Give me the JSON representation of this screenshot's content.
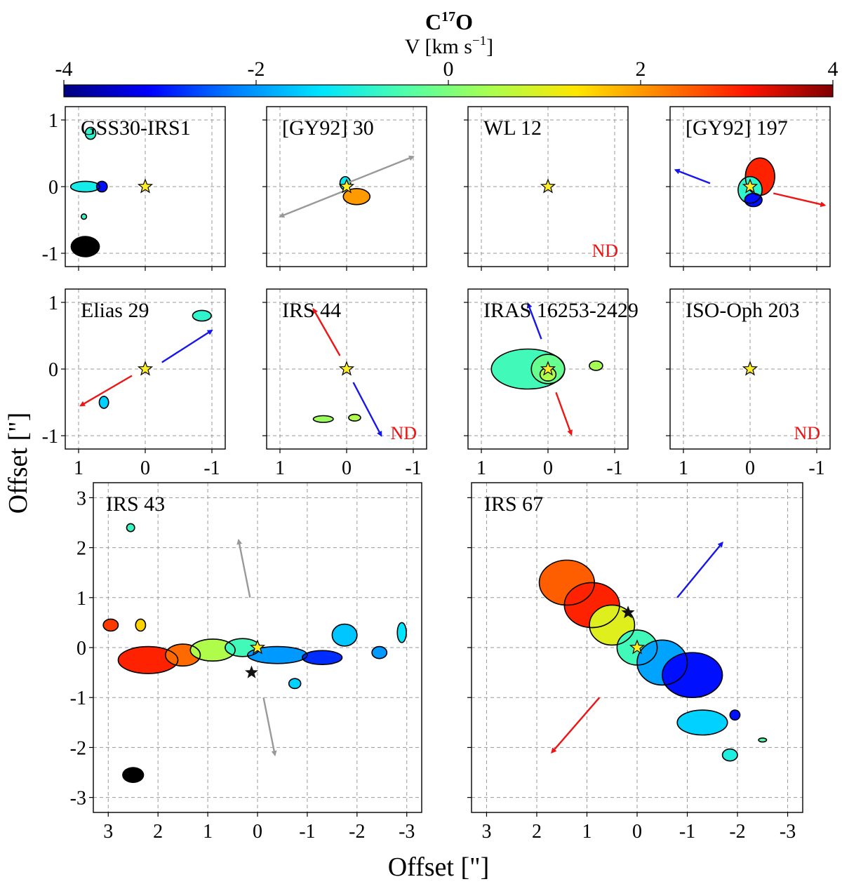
{
  "colorbar": {
    "title_base": "C",
    "title_sup": "17",
    "title_end": "O",
    "label_main": "V [km s",
    "label_sup": "−1",
    "label_end": "]",
    "range": [
      -4,
      4
    ],
    "ticks": [
      "-4",
      "-2",
      "0",
      "2",
      "4"
    ],
    "stops": [
      "#00007f",
      "#0000ff",
      "#0080ff",
      "#00e4ff",
      "#4fffaa",
      "#aaff4f",
      "#ffe600",
      "#ff8000",
      "#ff1400",
      "#7f0000"
    ]
  },
  "labels": {
    "ylabel": "Offset [\"]",
    "xlabel": "Offset [\"]"
  },
  "colors": {
    "star": "#ffee22",
    "source_star": "#111111",
    "nd": "#ee1111",
    "arrow_blue": "#1515ee",
    "arrow_red": "#ee1515",
    "arrow_grey": "#999999",
    "grid": "#9a9a9a"
  },
  "chart_data": [
    {
      "type": "heatmap",
      "title": "GSS30-IRS1",
      "xlim": [
        1.2,
        -1.2
      ],
      "ylim": [
        -1.2,
        1.2
      ],
      "xticks": [],
      "yticks": [
        "1",
        "0",
        "-1"
      ],
      "nd": "",
      "beam": {
        "x": 0.9,
        "y": -0.9,
        "rx": 0.22,
        "ry": 0.16
      },
      "arrows": [],
      "emission": [
        {
          "x": 0.82,
          "y": 0.8,
          "rx": 0.08,
          "ry": 0.09,
          "v": -0.8
        },
        {
          "x": 0.9,
          "y": 0.0,
          "rx": 0.22,
          "ry": 0.08,
          "v": -1.1
        },
        {
          "x": 0.65,
          "y": 0.0,
          "rx": 0.08,
          "ry": 0.08,
          "v": -3.0
        },
        {
          "x": 0.92,
          "y": -0.45,
          "rx": 0.04,
          "ry": 0.04,
          "v": -0.7
        }
      ]
    },
    {
      "type": "heatmap",
      "title": "[GY92] 30",
      "xlim": [
        1.2,
        -1.2
      ],
      "ylim": [
        -1.2,
        1.2
      ],
      "xticks": [],
      "yticks": [],
      "nd": "",
      "beam": null,
      "arrows": [
        {
          "x1": 0.05,
          "y1": 0.03,
          "x2": -1.0,
          "y2": 0.45,
          "color": "grey"
        },
        {
          "x1": -0.05,
          "y1": -0.03,
          "x2": 1.0,
          "y2": -0.45,
          "color": "grey"
        }
      ],
      "emission": [
        {
          "x": -0.15,
          "y": -0.15,
          "rx": 0.2,
          "ry": 0.12,
          "v": 2.0
        },
        {
          "x": 0.02,
          "y": 0.05,
          "rx": 0.08,
          "ry": 0.1,
          "v": -1.2
        }
      ]
    },
    {
      "type": "heatmap",
      "title": "WL 12",
      "xlim": [
        1.2,
        -1.2
      ],
      "ylim": [
        -1.2,
        1.2
      ],
      "xticks": [],
      "yticks": [],
      "nd": "ND",
      "beam": null,
      "arrows": [],
      "emission": []
    },
    {
      "type": "heatmap",
      "title": "[GY92] 197",
      "xlim": [
        1.2,
        -1.2
      ],
      "ylim": [
        -1.2,
        1.2
      ],
      "xticks": [],
      "yticks": [],
      "nd": "",
      "beam": null,
      "arrows": [
        {
          "x1": 0.6,
          "y1": 0.05,
          "x2": 1.12,
          "y2": 0.25,
          "color": "blue"
        },
        {
          "x1": -0.35,
          "y1": -0.1,
          "x2": -1.12,
          "y2": -0.28,
          "color": "red"
        }
      ],
      "emission": [
        {
          "x": -0.15,
          "y": 0.15,
          "rx": 0.22,
          "ry": 0.28,
          "v": 3.0
        },
        {
          "x": 0.0,
          "y": -0.05,
          "rx": 0.18,
          "ry": 0.2,
          "v": -0.8
        },
        {
          "x": -0.05,
          "y": -0.2,
          "rx": 0.13,
          "ry": 0.1,
          "v": -3.0
        }
      ]
    },
    {
      "type": "heatmap",
      "title": "Elias 29",
      "xlim": [
        1.2,
        -1.2
      ],
      "ylim": [
        -1.2,
        1.2
      ],
      "xticks": [
        "1",
        "0",
        "-1"
      ],
      "yticks": [
        "1",
        "0",
        "-1"
      ],
      "nd": "",
      "beam": null,
      "arrows": [
        {
          "x1": -0.25,
          "y1": 0.1,
          "x2": -1.0,
          "y2": 0.58,
          "color": "blue"
        },
        {
          "x1": 0.2,
          "y1": -0.1,
          "x2": 0.97,
          "y2": -0.55,
          "color": "red"
        }
      ],
      "emission": [
        {
          "x": -0.85,
          "y": 0.8,
          "rx": 0.14,
          "ry": 0.08,
          "v": -0.8
        },
        {
          "x": 0.62,
          "y": -0.5,
          "rx": 0.07,
          "ry": 0.09,
          "v": -1.5
        }
      ]
    },
    {
      "type": "heatmap",
      "title": "IRS 44",
      "xlim": [
        1.2,
        -1.2
      ],
      "ylim": [
        -1.2,
        1.2
      ],
      "xticks": [
        "1",
        "0",
        "-1"
      ],
      "yticks": [],
      "nd": "ND",
      "beam": null,
      "arrows": [
        {
          "x1": 0.1,
          "y1": 0.2,
          "x2": 0.5,
          "y2": 0.9,
          "color": "red"
        },
        {
          "x1": -0.1,
          "y1": -0.2,
          "x2": -0.52,
          "y2": -1.0,
          "color": "blue"
        }
      ],
      "emission": [
        {
          "x": 0.35,
          "y": -0.75,
          "rx": 0.15,
          "ry": 0.05,
          "v": 0.3
        },
        {
          "x": -0.12,
          "y": -0.73,
          "rx": 0.09,
          "ry": 0.05,
          "v": 0.5
        }
      ]
    },
    {
      "type": "heatmap",
      "title": "IRAS 16253-2429",
      "xlim": [
        1.2,
        -1.2
      ],
      "ylim": [
        -1.2,
        1.2
      ],
      "xticks": [
        "1",
        "0",
        "-1"
      ],
      "yticks": [],
      "nd": "",
      "beam": null,
      "arrows": [
        {
          "x1": 0.1,
          "y1": 0.45,
          "x2": 0.3,
          "y2": 0.98,
          "color": "blue"
        },
        {
          "x1": -0.12,
          "y1": -0.35,
          "x2": -0.35,
          "y2": -0.98,
          "color": "red"
        }
      ],
      "emission": [
        {
          "x": 0.3,
          "y": 0.0,
          "rx": 0.55,
          "ry": 0.3,
          "v": -0.6
        },
        {
          "x": 0.0,
          "y": 0.0,
          "rx": 0.25,
          "ry": 0.22,
          "v": -0.2
        },
        {
          "x": 0.0,
          "y": -0.08,
          "rx": 0.12,
          "ry": 0.1,
          "v": 0.5
        },
        {
          "x": -0.72,
          "y": 0.05,
          "rx": 0.1,
          "ry": 0.07,
          "v": 0.4
        }
      ]
    },
    {
      "type": "heatmap",
      "title": "ISO-Oph 203",
      "xlim": [
        1.2,
        -1.2
      ],
      "ylim": [
        -1.2,
        1.2
      ],
      "xticks": [
        "1",
        "0",
        "-1"
      ],
      "yticks": [],
      "nd": "ND",
      "beam": null,
      "arrows": [],
      "emission": []
    },
    {
      "type": "heatmap",
      "title": "IRS 43",
      "xlim": [
        3.3,
        -3.3
      ],
      "ylim": [
        -3.3,
        3.3
      ],
      "xticks": [
        "3",
        "2",
        "1",
        "0",
        "-1",
        "-2",
        "-3"
      ],
      "yticks": [
        "3",
        "2",
        "1",
        "0",
        "-1",
        "-2",
        "-3"
      ],
      "nd": "",
      "beam": {
        "x": 2.5,
        "y": -2.55,
        "rx": 0.22,
        "ry": 0.16
      },
      "sources": [
        {
          "x": 0.12,
          "y": -0.5
        }
      ],
      "arrows": [
        {
          "x1": 0.15,
          "y1": 1.0,
          "x2": 0.38,
          "y2": 2.15,
          "color": "grey"
        },
        {
          "x1": -0.12,
          "y1": -1.0,
          "x2": -0.35,
          "y2": -2.15,
          "color": "grey"
        }
      ],
      "emission": [
        {
          "x": 2.55,
          "y": 2.4,
          "rx": 0.08,
          "ry": 0.08,
          "v": -0.7
        },
        {
          "x": 2.2,
          "y": -0.25,
          "rx": 0.6,
          "ry": 0.27,
          "v": 3.0
        },
        {
          "x": 1.5,
          "y": -0.15,
          "rx": 0.35,
          "ry": 0.22,
          "v": 2.4
        },
        {
          "x": 0.9,
          "y": -0.05,
          "rx": 0.45,
          "ry": 0.22,
          "v": 0.5
        },
        {
          "x": 0.3,
          "y": 0.0,
          "rx": 0.35,
          "ry": 0.18,
          "v": -0.6
        },
        {
          "x": -0.4,
          "y": -0.15,
          "rx": 0.6,
          "ry": 0.17,
          "v": -2.0
        },
        {
          "x": -1.3,
          "y": -0.2,
          "rx": 0.4,
          "ry": 0.14,
          "v": -2.8
        },
        {
          "x": 2.95,
          "y": 0.45,
          "rx": 0.15,
          "ry": 0.12,
          "v": 2.8
        },
        {
          "x": 2.35,
          "y": 0.45,
          "rx": 0.1,
          "ry": 0.12,
          "v": 1.5
        },
        {
          "x": -0.75,
          "y": -0.72,
          "rx": 0.12,
          "ry": 0.1,
          "v": -1.5
        },
        {
          "x": -1.75,
          "y": 0.25,
          "rx": 0.25,
          "ry": 0.22,
          "v": -1.6
        },
        {
          "x": -2.45,
          "y": -0.1,
          "rx": 0.15,
          "ry": 0.12,
          "v": -2.0
        },
        {
          "x": -2.9,
          "y": 0.3,
          "rx": 0.09,
          "ry": 0.2,
          "v": -1.3
        }
      ]
    },
    {
      "type": "heatmap",
      "title": "IRS 67",
      "xlim": [
        3.3,
        -3.3
      ],
      "ylim": [
        -3.3,
        3.3
      ],
      "xticks": [
        "3",
        "2",
        "1",
        "0",
        "-1",
        "-2",
        "-3"
      ],
      "yticks": [],
      "nd": "",
      "beam": null,
      "sources": [
        {
          "x": 0.18,
          "y": 0.7
        }
      ],
      "arrows": [
        {
          "x1": -0.8,
          "y1": 1.0,
          "x2": -1.7,
          "y2": 2.1,
          "color": "blue"
        },
        {
          "x1": 0.75,
          "y1": -1.0,
          "x2": 1.7,
          "y2": -2.1,
          "color": "red"
        }
      ],
      "emission": [
        {
          "x": 1.4,
          "y": 1.3,
          "rx": 0.55,
          "ry": 0.45,
          "v": 2.5
        },
        {
          "x": 0.9,
          "y": 0.85,
          "rx": 0.55,
          "ry": 0.45,
          "v": 3.0
        },
        {
          "x": 0.5,
          "y": 0.45,
          "rx": 0.45,
          "ry": 0.4,
          "v": 1.0
        },
        {
          "x": 0.0,
          "y": 0.0,
          "rx": 0.4,
          "ry": 0.35,
          "v": -0.6
        },
        {
          "x": -0.5,
          "y": -0.3,
          "rx": 0.5,
          "ry": 0.45,
          "v": -1.9
        },
        {
          "x": -1.1,
          "y": -0.55,
          "rx": 0.6,
          "ry": 0.45,
          "v": -3.0
        },
        {
          "x": -1.3,
          "y": -1.5,
          "rx": 0.5,
          "ry": 0.25,
          "v": -1.5
        },
        {
          "x": -1.95,
          "y": -1.35,
          "rx": 0.1,
          "ry": 0.1,
          "v": -3.0
        },
        {
          "x": -1.85,
          "y": -2.15,
          "rx": 0.15,
          "ry": 0.12,
          "v": -1.0
        },
        {
          "x": -2.5,
          "y": -1.85,
          "rx": 0.08,
          "ry": 0.04,
          "v": -0.5
        }
      ]
    }
  ]
}
